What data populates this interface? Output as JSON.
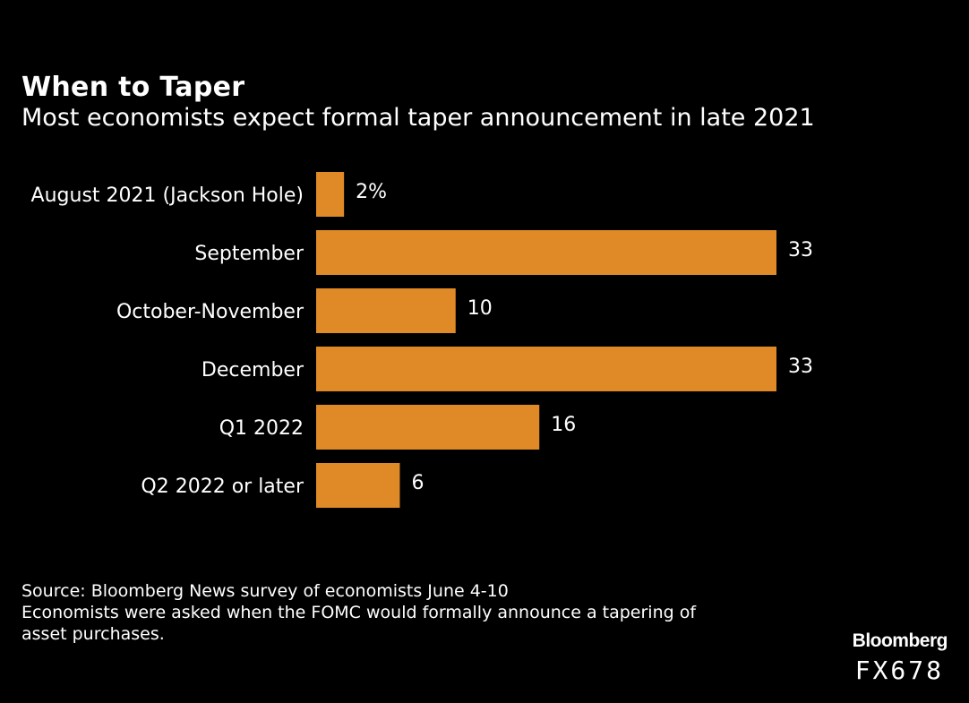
{
  "chart_data": {
    "type": "bar",
    "orientation": "horizontal",
    "title": "When to Taper",
    "subtitle": "Most economists expect formal taper announcement in late 2021",
    "categories": [
      "August 2021 (Jackson Hole)",
      "September",
      "October-November",
      "December",
      "Q1 2022",
      "Q2 2022 or later"
    ],
    "values": [
      2,
      33,
      10,
      33,
      16,
      6
    ],
    "value_labels": [
      "2%",
      "33",
      "10",
      "33",
      "16",
      "6"
    ],
    "xlim": [
      0,
      33
    ],
    "grid": false,
    "bar_color": "#DF8A26"
  },
  "footer": {
    "source": "Source: Bloomberg News survey of economists June 4-10",
    "note_line1": "Economists were asked when the FOMC would formally announce a tapering of",
    "note_line2": "asset purchases."
  },
  "brand": {
    "logo": "Bloomberg",
    "code": "FX678"
  },
  "colors": {
    "background": "#000000",
    "text": "#FFFFFF",
    "bar": "#DF8A26"
  }
}
